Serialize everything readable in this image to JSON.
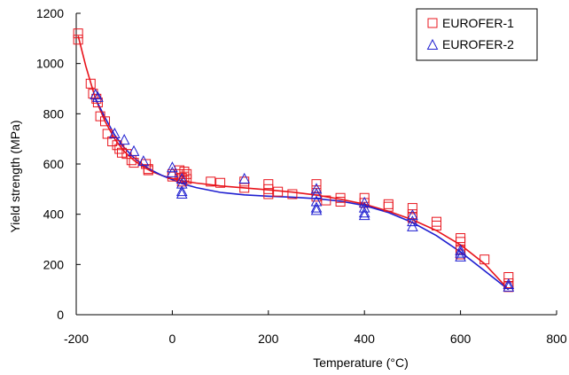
{
  "chart_data": {
    "type": "scatter",
    "title": "",
    "xlabel": "Temperature (°C)",
    "ylabel": "Yield strength (MPa)",
    "xlim": [
      -200,
      800
    ],
    "ylim": [
      0,
      1200
    ],
    "xticks": [
      -200,
      0,
      200,
      400,
      600,
      800
    ],
    "yticks": [
      0,
      200,
      400,
      600,
      800,
      1000,
      1200
    ],
    "grid": false,
    "legend_position": "top-right",
    "series": [
      {
        "name": "EUROFER-1",
        "marker": "square",
        "color": "#e8141c",
        "points": [
          [
            -196,
            1120
          ],
          [
            -196,
            1095
          ],
          [
            -170,
            920
          ],
          [
            -165,
            880
          ],
          [
            -158,
            860
          ],
          [
            -155,
            845
          ],
          [
            -150,
            790
          ],
          [
            -140,
            770
          ],
          [
            -135,
            720
          ],
          [
            -125,
            690
          ],
          [
            -115,
            675
          ],
          [
            -110,
            660
          ],
          [
            -105,
            645
          ],
          [
            -95,
            640
          ],
          [
            -85,
            615
          ],
          [
            -80,
            605
          ],
          [
            -55,
            600
          ],
          [
            -50,
            580
          ],
          [
            -50,
            575
          ],
          [
            0,
            560
          ],
          [
            0,
            550
          ],
          [
            15,
            575
          ],
          [
            15,
            560
          ],
          [
            20,
            545
          ],
          [
            20,
            530
          ],
          [
            25,
            570
          ],
          [
            25,
            550
          ],
          [
            30,
            560
          ],
          [
            30,
            540
          ],
          [
            80,
            530
          ],
          [
            100,
            525
          ],
          [
            150,
            530
          ],
          [
            150,
            505
          ],
          [
            200,
            520
          ],
          [
            200,
            500
          ],
          [
            200,
            480
          ],
          [
            220,
            490
          ],
          [
            250,
            480
          ],
          [
            300,
            520
          ],
          [
            300,
            495
          ],
          [
            300,
            470
          ],
          [
            320,
            455
          ],
          [
            350,
            465
          ],
          [
            350,
            450
          ],
          [
            400,
            465
          ],
          [
            400,
            445
          ],
          [
            450,
            440
          ],
          [
            450,
            430
          ],
          [
            500,
            425
          ],
          [
            500,
            400
          ],
          [
            500,
            385
          ],
          [
            550,
            370
          ],
          [
            550,
            355
          ],
          [
            600,
            305
          ],
          [
            600,
            290
          ],
          [
            600,
            260
          ],
          [
            600,
            240
          ],
          [
            650,
            220
          ],
          [
            700,
            150
          ],
          [
            700,
            125
          ],
          [
            700,
            110
          ]
        ],
        "fit_curve": [
          [
            -196,
            1110
          ],
          [
            -180,
            990
          ],
          [
            -160,
            860
          ],
          [
            -140,
            770
          ],
          [
            -120,
            700
          ],
          [
            -100,
            650
          ],
          [
            -80,
            615
          ],
          [
            -60,
            588
          ],
          [
            -40,
            568
          ],
          [
            -20,
            553
          ],
          [
            0,
            542
          ],
          [
            20,
            533
          ],
          [
            50,
            524
          ],
          [
            100,
            513
          ],
          [
            150,
            505
          ],
          [
            200,
            497
          ],
          [
            250,
            488
          ],
          [
            300,
            476
          ],
          [
            350,
            460
          ],
          [
            400,
            440
          ],
          [
            450,
            412
          ],
          [
            500,
            378
          ],
          [
            550,
            335
          ],
          [
            600,
            278
          ],
          [
            650,
            203
          ],
          [
            700,
            100
          ]
        ]
      },
      {
        "name": "EUROFER-2",
        "marker": "triangle",
        "color": "#1f1fd0",
        "points": [
          [
            -160,
            875
          ],
          [
            -155,
            865
          ],
          [
            -120,
            720
          ],
          [
            -100,
            695
          ],
          [
            -80,
            650
          ],
          [
            -60,
            610
          ],
          [
            0,
            585
          ],
          [
            0,
            565
          ],
          [
            20,
            540
          ],
          [
            20,
            520
          ],
          [
            20,
            490
          ],
          [
            20,
            480
          ],
          [
            150,
            540
          ],
          [
            300,
            500
          ],
          [
            300,
            480
          ],
          [
            300,
            450
          ],
          [
            300,
            425
          ],
          [
            300,
            415
          ],
          [
            400,
            445
          ],
          [
            400,
            425
          ],
          [
            400,
            405
          ],
          [
            400,
            395
          ],
          [
            500,
            395
          ],
          [
            500,
            370
          ],
          [
            500,
            350
          ],
          [
            600,
            255
          ],
          [
            600,
            245
          ],
          [
            600,
            230
          ],
          [
            700,
            120
          ],
          [
            700,
            110
          ]
        ],
        "fit_curve": [
          [
            -160,
            860
          ],
          [
            -140,
            785
          ],
          [
            -120,
            715
          ],
          [
            -100,
            665
          ],
          [
            -80,
            625
          ],
          [
            -60,
            595
          ],
          [
            -40,
            572
          ],
          [
            -20,
            553
          ],
          [
            0,
            538
          ],
          [
            20,
            522
          ],
          [
            50,
            506
          ],
          [
            100,
            487
          ],
          [
            150,
            477
          ],
          [
            200,
            472
          ],
          [
            250,
            468
          ],
          [
            300,
            462
          ],
          [
            350,
            452
          ],
          [
            400,
            435
          ],
          [
            450,
            407
          ],
          [
            500,
            367
          ],
          [
            550,
            315
          ],
          [
            600,
            250
          ],
          [
            650,
            175
          ],
          [
            700,
            100
          ]
        ]
      }
    ]
  }
}
